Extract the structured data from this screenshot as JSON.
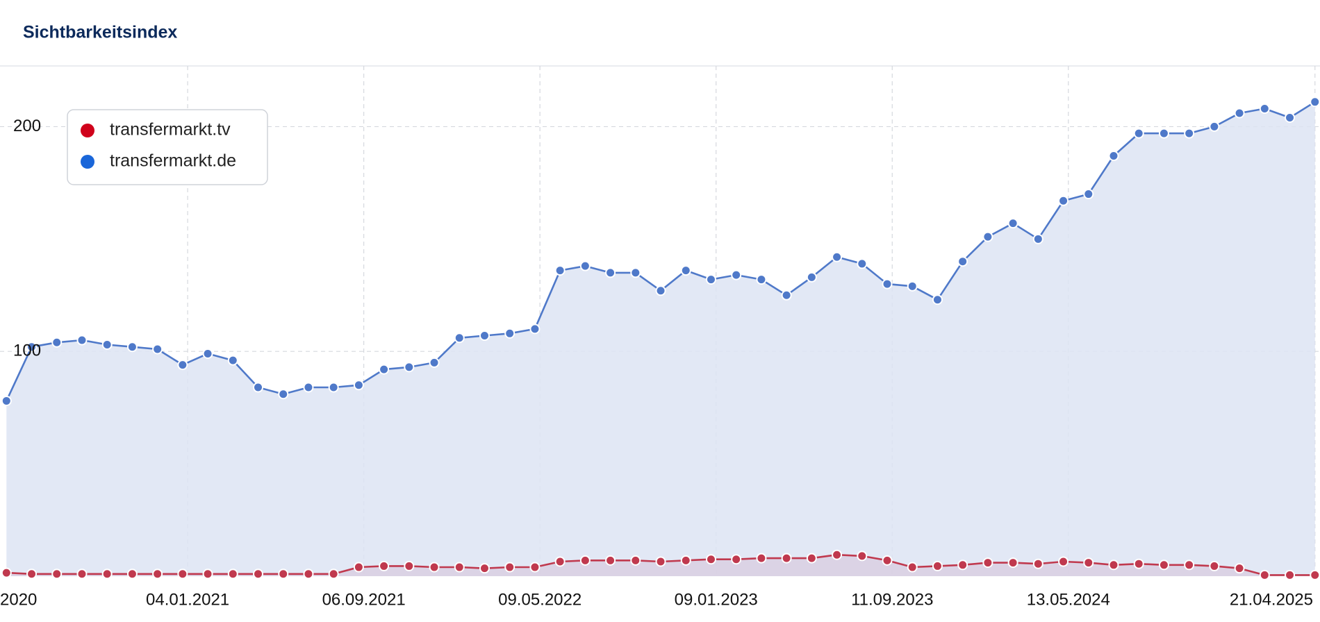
{
  "chart_data": {
    "type": "line",
    "title": "Sichtbarkeitsindex",
    "x": [
      "2020-04-27",
      "2020-06-01",
      "2020-07-06",
      "2020-08-10",
      "2020-09-14",
      "2020-10-19",
      "2020-11-23",
      "2020-12-28",
      "2021-02-01",
      "2021-03-08",
      "2021-04-12",
      "2021-05-17",
      "2021-06-21",
      "2021-07-26",
      "2021-08-30",
      "2021-10-04",
      "2021-11-08",
      "2021-12-13",
      "2022-01-17",
      "2022-02-21",
      "2022-03-28",
      "2022-05-02",
      "2022-06-06",
      "2022-07-11",
      "2022-08-15",
      "2022-09-19",
      "2022-10-24",
      "2022-11-28",
      "2023-01-02",
      "2023-02-06",
      "2023-03-13",
      "2023-04-17",
      "2023-05-22",
      "2023-06-26",
      "2023-07-31",
      "2023-09-04",
      "2023-10-09",
      "2023-11-13",
      "2023-12-18",
      "2024-01-22",
      "2024-02-26",
      "2024-04-01",
      "2024-05-06",
      "2024-06-10",
      "2024-07-15",
      "2024-08-19",
      "2024-09-23",
      "2024-10-28",
      "2024-12-02",
      "2025-01-06",
      "2025-02-10",
      "2025-03-17",
      "2025-04-21"
    ],
    "series": [
      {
        "name": "transfermarkt.tv",
        "color": "#c0394e",
        "area_color": "#d9cfe2",
        "legend_color": "#d0021b",
        "values": [
          1.5,
          1,
          1,
          1,
          1,
          1,
          1,
          1,
          1,
          1,
          1,
          1,
          1,
          1,
          4,
          4.5,
          4.5,
          4,
          4,
          3.5,
          4,
          4,
          6.5,
          7,
          7,
          7,
          6.5,
          7,
          7.5,
          7.5,
          8,
          8,
          8,
          9.5,
          9,
          7,
          4,
          4.5,
          5,
          6,
          6,
          5.5,
          6.5,
          6,
          5,
          5.5,
          5,
          5,
          4.5,
          3.5,
          0.5,
          0.5,
          0.5
        ]
      },
      {
        "name": "transfermarkt.de",
        "color": "#4f79c9",
        "area_color": "#dde4f3",
        "legend_color": "#1a66d9",
        "values": [
          78,
          102,
          104,
          105,
          103,
          102,
          101,
          94,
          99,
          96,
          84,
          81,
          84,
          84,
          85,
          92,
          93,
          95,
          106,
          107,
          108,
          110,
          136,
          138,
          135,
          135,
          127,
          136,
          132,
          134,
          132,
          125,
          133,
          142,
          139,
          130,
          129,
          123,
          140,
          151,
          157,
          150,
          167,
          170,
          187,
          197,
          197,
          197,
          200,
          206,
          208,
          204,
          211
        ]
      }
    ],
    "xlim": [
      "2020-04-18",
      "2025-04-28"
    ],
    "xticks": [
      {
        "value": "2020-04-04",
        "label": "2020"
      },
      {
        "value": "2021-01-04",
        "label": "04.01.2021"
      },
      {
        "value": "2021-09-06",
        "label": "06.09.2021"
      },
      {
        "value": "2022-05-09",
        "label": "09.05.2022"
      },
      {
        "value": "2023-01-09",
        "label": "09.01.2023"
      },
      {
        "value": "2023-09-11",
        "label": "11.09.2023"
      },
      {
        "value": "2024-05-13",
        "label": "13.05.2024"
      },
      {
        "value": "2025-04-21",
        "label": "21.04.2025"
      }
    ],
    "ylim": [
      0,
      227
    ],
    "yticks": [
      100,
      200
    ],
    "grid": true,
    "legend": "top-left"
  }
}
